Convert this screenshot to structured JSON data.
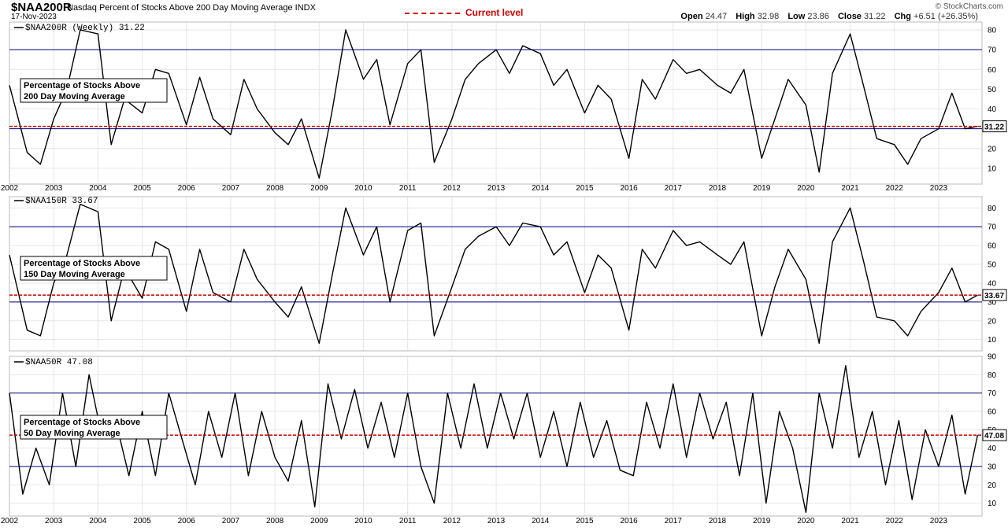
{
  "header": {
    "symbol": "$NAA200R",
    "name": "Nasdaq Percent of Stocks Above 200 Day Moving Average",
    "exchange": "INDX",
    "date": "17-Nov-2023",
    "current_level_label": "Current level",
    "current_level_color": "#cc0000",
    "copyright": "© StockCharts.com",
    "ohlc": {
      "open_label": "Open",
      "open": "24.47",
      "high_label": "High",
      "high": "32.98",
      "low_label": "Low",
      "low": "23.86",
      "close_label": "Close",
      "close": "31.22",
      "chg_label": "Chg",
      "chg": "+6.51 (+26.35%)"
    }
  },
  "chart_data": [
    {
      "type": "line",
      "label": "$NAA200R (Weekly) 31.22",
      "annotation": [
        "Percentage of Stocks Above",
        "200 Day Moving Average"
      ],
      "current": 31.22,
      "current_label": "31.22",
      "ylim": [
        2,
        84
      ],
      "yticks": [
        10,
        20,
        30,
        40,
        50,
        60,
        70,
        80
      ],
      "hlines": [
        70,
        30
      ],
      "x": [
        "2002",
        "2002.4",
        "2002.7",
        "2003",
        "2003.3",
        "2003.6",
        "2004",
        "2004.3",
        "2004.6",
        "2005",
        "2005.3",
        "2005.6",
        "2006",
        "2006.3",
        "2006.6",
        "2007",
        "2007.3",
        "2007.6",
        "2008",
        "2008.3",
        "2008.6",
        "2009",
        "2009.3",
        "2009.6",
        "2010",
        "2010.3",
        "2010.6",
        "2011",
        "2011.3",
        "2011.6",
        "2012",
        "2012.3",
        "2012.6",
        "2013",
        "2013.3",
        "2013.6",
        "2014",
        "2014.3",
        "2014.6",
        "2015",
        "2015.3",
        "2015.6",
        "2016",
        "2016.3",
        "2016.6",
        "2017",
        "2017.3",
        "2017.6",
        "2018",
        "2018.3",
        "2018.6",
        "2019",
        "2019.3",
        "2019.6",
        "2020",
        "2020.3",
        "2020.6",
        "2021",
        "2021.3",
        "2021.6",
        "2022",
        "2022.3",
        "2022.6",
        "2023",
        "2023.3",
        "2023.6",
        "2023.88"
      ],
      "values": [
        52,
        18,
        12,
        35,
        50,
        80,
        78,
        22,
        45,
        38,
        60,
        58,
        32,
        56,
        35,
        27,
        55,
        40,
        28,
        22,
        35,
        5,
        40,
        80,
        55,
        65,
        32,
        63,
        70,
        13,
        35,
        55,
        63,
        70,
        58,
        72,
        68,
        52,
        60,
        38,
        52,
        45,
        15,
        55,
        45,
        65,
        58,
        60,
        52,
        48,
        60,
        15,
        35,
        55,
        42,
        8,
        58,
        78,
        52,
        25,
        22,
        12,
        25,
        30,
        48,
        30,
        31.22
      ]
    },
    {
      "type": "line",
      "label": "$NAA150R 33.67",
      "annotation": [
        "Percentage of Stocks Above",
        "150 Day Moving Average"
      ],
      "current": 33.67,
      "current_label": "33.67",
      "ylim": [
        4,
        86
      ],
      "yticks": [
        10,
        20,
        30,
        40,
        50,
        60,
        70,
        80
      ],
      "hlines": [
        70,
        30
      ],
      "x": [
        "2002",
        "2002.4",
        "2002.7",
        "2003",
        "2003.3",
        "2003.6",
        "2004",
        "2004.3",
        "2004.6",
        "2005",
        "2005.3",
        "2005.6",
        "2006",
        "2006.3",
        "2006.6",
        "2007",
        "2007.3",
        "2007.6",
        "2008",
        "2008.3",
        "2008.6",
        "2009",
        "2009.3",
        "2009.6",
        "2010",
        "2010.3",
        "2010.6",
        "2011",
        "2011.3",
        "2011.6",
        "2012",
        "2012.3",
        "2012.6",
        "2013",
        "2013.3",
        "2013.6",
        "2014",
        "2014.3",
        "2014.6",
        "2015",
        "2015.3",
        "2015.6",
        "2016",
        "2016.3",
        "2016.6",
        "2017",
        "2017.3",
        "2017.6",
        "2018",
        "2018.3",
        "2018.6",
        "2019",
        "2019.3",
        "2019.6",
        "2020",
        "2020.3",
        "2020.6",
        "2021",
        "2021.3",
        "2021.6",
        "2022",
        "2022.3",
        "2022.6",
        "2023",
        "2023.3",
        "2023.6",
        "2023.88"
      ],
      "values": [
        55,
        15,
        12,
        40,
        55,
        82,
        78,
        20,
        48,
        32,
        62,
        58,
        25,
        58,
        35,
        30,
        58,
        42,
        30,
        22,
        38,
        8,
        45,
        80,
        55,
        70,
        30,
        68,
        72,
        12,
        38,
        58,
        65,
        70,
        60,
        72,
        70,
        55,
        62,
        35,
        55,
        48,
        15,
        58,
        48,
        68,
        60,
        62,
        55,
        50,
        62,
        12,
        38,
        58,
        42,
        8,
        62,
        80,
        52,
        22,
        20,
        12,
        25,
        35,
        48,
        30,
        33.67
      ]
    },
    {
      "type": "line",
      "label": "$NAA50R 47.08",
      "annotation": [
        "Percentage of Stocks Above",
        "50 Day Moving Average"
      ],
      "current": 47.08,
      "current_label": "47.08",
      "ylim": [
        3,
        90
      ],
      "yticks": [
        10,
        20,
        30,
        40,
        50,
        60,
        70,
        80,
        90
      ],
      "hlines": [
        70,
        30
      ],
      "x": [
        "2002",
        "2002.3",
        "2002.6",
        "2002.9",
        "2003.2",
        "2003.5",
        "2003.8",
        "2004.1",
        "2004.4",
        "2004.7",
        "2005",
        "2005.3",
        "2005.6",
        "2005.9",
        "2006.2",
        "2006.5",
        "2006.8",
        "2007.1",
        "2007.4",
        "2007.7",
        "2008",
        "2008.3",
        "2008.6",
        "2008.9",
        "2009.2",
        "2009.5",
        "2009.8",
        "2010.1",
        "2010.4",
        "2010.7",
        "2011",
        "2011.3",
        "2011.6",
        "2011.9",
        "2012.2",
        "2012.5",
        "2012.8",
        "2013.1",
        "2013.4",
        "2013.7",
        "2014",
        "2014.3",
        "2014.6",
        "2014.9",
        "2015.2",
        "2015.5",
        "2015.8",
        "2016.1",
        "2016.4",
        "2016.7",
        "2017",
        "2017.3",
        "2017.6",
        "2017.9",
        "2018.2",
        "2018.5",
        "2018.8",
        "2019.1",
        "2019.4",
        "2019.7",
        "2020",
        "2020.3",
        "2020.6",
        "2020.9",
        "2021.2",
        "2021.5",
        "2021.8",
        "2022.1",
        "2022.4",
        "2022.7",
        "2023",
        "2023.3",
        "2023.6",
        "2023.88"
      ],
      "values": [
        70,
        15,
        40,
        20,
        70,
        30,
        80,
        45,
        55,
        25,
        60,
        25,
        70,
        45,
        20,
        60,
        35,
        70,
        25,
        60,
        35,
        22,
        55,
        8,
        75,
        45,
        72,
        40,
        65,
        35,
        70,
        30,
        10,
        70,
        40,
        75,
        40,
        70,
        45,
        70,
        35,
        60,
        30,
        65,
        35,
        55,
        28,
        25,
        65,
        40,
        75,
        35,
        70,
        45,
        65,
        25,
        70,
        10,
        60,
        40,
        5,
        70,
        40,
        85,
        35,
        60,
        20,
        55,
        12,
        50,
        30,
        58,
        15,
        47.08
      ]
    }
  ],
  "x_axis_labels": [
    "2002",
    "2003",
    "2004",
    "2005",
    "2006",
    "2007",
    "2008",
    "2009",
    "2010",
    "2011",
    "2012",
    "2013",
    "2014",
    "2015",
    "2016",
    "2017",
    "2018",
    "2019",
    "2020",
    "2021",
    "2022",
    "2023"
  ],
  "colors": {
    "line": "#000000",
    "hline": "#000080",
    "current": "#cc0000",
    "grid": "#e6e6e6",
    "panel_border": "#bbbbbb"
  }
}
